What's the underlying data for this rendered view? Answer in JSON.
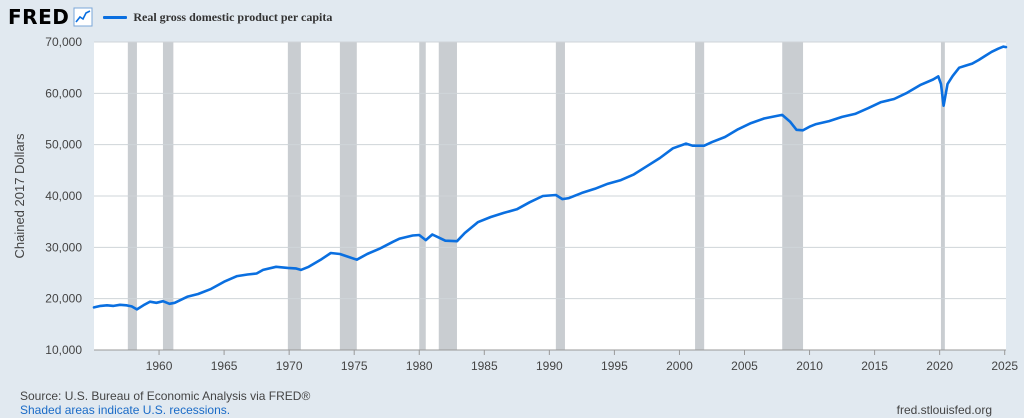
{
  "header": {
    "logo_text": "FRED",
    "logo_icon": "trend-line-icon",
    "legend_label": "Real gross domestic product per capita"
  },
  "colors": {
    "series": "#0a6fe0",
    "recession": "#c9cdd1",
    "plot_background": "#ffffff",
    "page_background": "#e1e9f0",
    "grid": "#cfd4d8"
  },
  "chart_data": {
    "type": "line",
    "title": "",
    "xlabel": "",
    "ylabel": "Chained 2017 Dollars",
    "xlim": [
      1955.0,
      2025.1
    ],
    "ylim": [
      10000,
      70000
    ],
    "grid": true,
    "legend_position": "top-left",
    "y_ticks": [
      10000,
      20000,
      30000,
      40000,
      50000,
      60000,
      70000
    ],
    "y_tick_labels": [
      "10,000",
      "20,000",
      "30,000",
      "40,000",
      "50,000",
      "60,000",
      "70,000"
    ],
    "x_ticks": [
      1960,
      1965,
      1970,
      1975,
      1980,
      1985,
      1990,
      1995,
      2000,
      2005,
      2010,
      2015,
      2020,
      2025
    ],
    "x_tick_labels": [
      "1960",
      "1965",
      "1970",
      "1975",
      "1980",
      "1985",
      "1990",
      "1995",
      "2000",
      "2005",
      "2010",
      "2015",
      "2020",
      "2025"
    ],
    "recessions": [
      [
        1957.6,
        1958.3
      ],
      [
        1960.3,
        1961.1
      ],
      [
        1969.9,
        1970.9
      ],
      [
        1973.9,
        1975.2
      ],
      [
        1980.0,
        1980.5
      ],
      [
        1981.5,
        1982.9
      ],
      [
        1990.5,
        1991.2
      ],
      [
        2001.2,
        2001.9
      ],
      [
        2007.9,
        2009.5
      ],
      [
        2020.1,
        2020.4
      ]
    ],
    "series": [
      {
        "name": "Real gross domestic product per capita",
        "x": [
          1955.0,
          1955.5,
          1956.0,
          1956.5,
          1957.0,
          1957.5,
          1957.9,
          1958.3,
          1958.8,
          1959.3,
          1959.8,
          1960.3,
          1960.8,
          1961.2,
          1961.7,
          1962.2,
          1963.0,
          1964.0,
          1965.0,
          1966.0,
          1966.8,
          1967.5,
          1968.0,
          1969.0,
          1969.9,
          1970.5,
          1970.9,
          1971.5,
          1972.5,
          1973.2,
          1973.9,
          1974.5,
          1975.2,
          1976.0,
          1977.0,
          1978.0,
          1978.5,
          1979.5,
          1980.0,
          1980.5,
          1981.0,
          1981.5,
          1982.0,
          1982.9,
          1983.5,
          1984.5,
          1985.5,
          1986.5,
          1987.5,
          1988.5,
          1989.5,
          1990.5,
          1991.0,
          1991.5,
          1992.5,
          1993.5,
          1994.5,
          1995.5,
          1996.5,
          1997.5,
          1998.5,
          1999.5,
          2000.5,
          2001.0,
          2001.9,
          2002.5,
          2003.5,
          2004.5,
          2005.5,
          2006.5,
          2007.5,
          2007.9,
          2008.5,
          2009.0,
          2009.5,
          2010.0,
          2010.5,
          2011.5,
          2012.5,
          2013.5,
          2014.5,
          2015.5,
          2016.5,
          2017.5,
          2018.5,
          2019.5,
          2019.9,
          2020.1,
          2020.3,
          2020.6,
          2021.0,
          2021.5,
          2022.0,
          2022.5,
          2023.0,
          2023.5,
          2024.0,
          2024.5,
          2024.9,
          2025.1
        ],
        "y": [
          18300,
          18600,
          18700,
          18600,
          18800,
          18700,
          18500,
          17900,
          18700,
          19400,
          19200,
          19500,
          19000,
          19200,
          19800,
          20400,
          20900,
          21900,
          23300,
          24400,
          24700,
          24900,
          25600,
          26200,
          26000,
          25900,
          25600,
          26200,
          27700,
          28900,
          28700,
          28200,
          27600,
          28700,
          29800,
          31100,
          31700,
          32300,
          32400,
          31400,
          32500,
          31900,
          31300,
          31200,
          32800,
          34900,
          35900,
          36700,
          37400,
          38800,
          40000,
          40200,
          39400,
          39600,
          40600,
          41400,
          42400,
          43100,
          44200,
          45800,
          47400,
          49300,
          50200,
          49800,
          49800,
          50500,
          51500,
          53000,
          54200,
          55100,
          55600,
          55800,
          54500,
          52900,
          52800,
          53500,
          54000,
          54600,
          55400,
          56000,
          57100,
          58300,
          58900,
          60100,
          61600,
          62700,
          63300,
          61800,
          57600,
          61800,
          63400,
          65000,
          65400,
          65800,
          66500,
          67300,
          68100,
          68700,
          69100,
          69000
        ]
      }
    ]
  },
  "footer": {
    "source": "Source: U.S. Bureau of Economic Analysis via FRED®",
    "recession_note": "Shaded areas indicate U.S. recessions.",
    "site": "fred.stlouisfed.org"
  }
}
